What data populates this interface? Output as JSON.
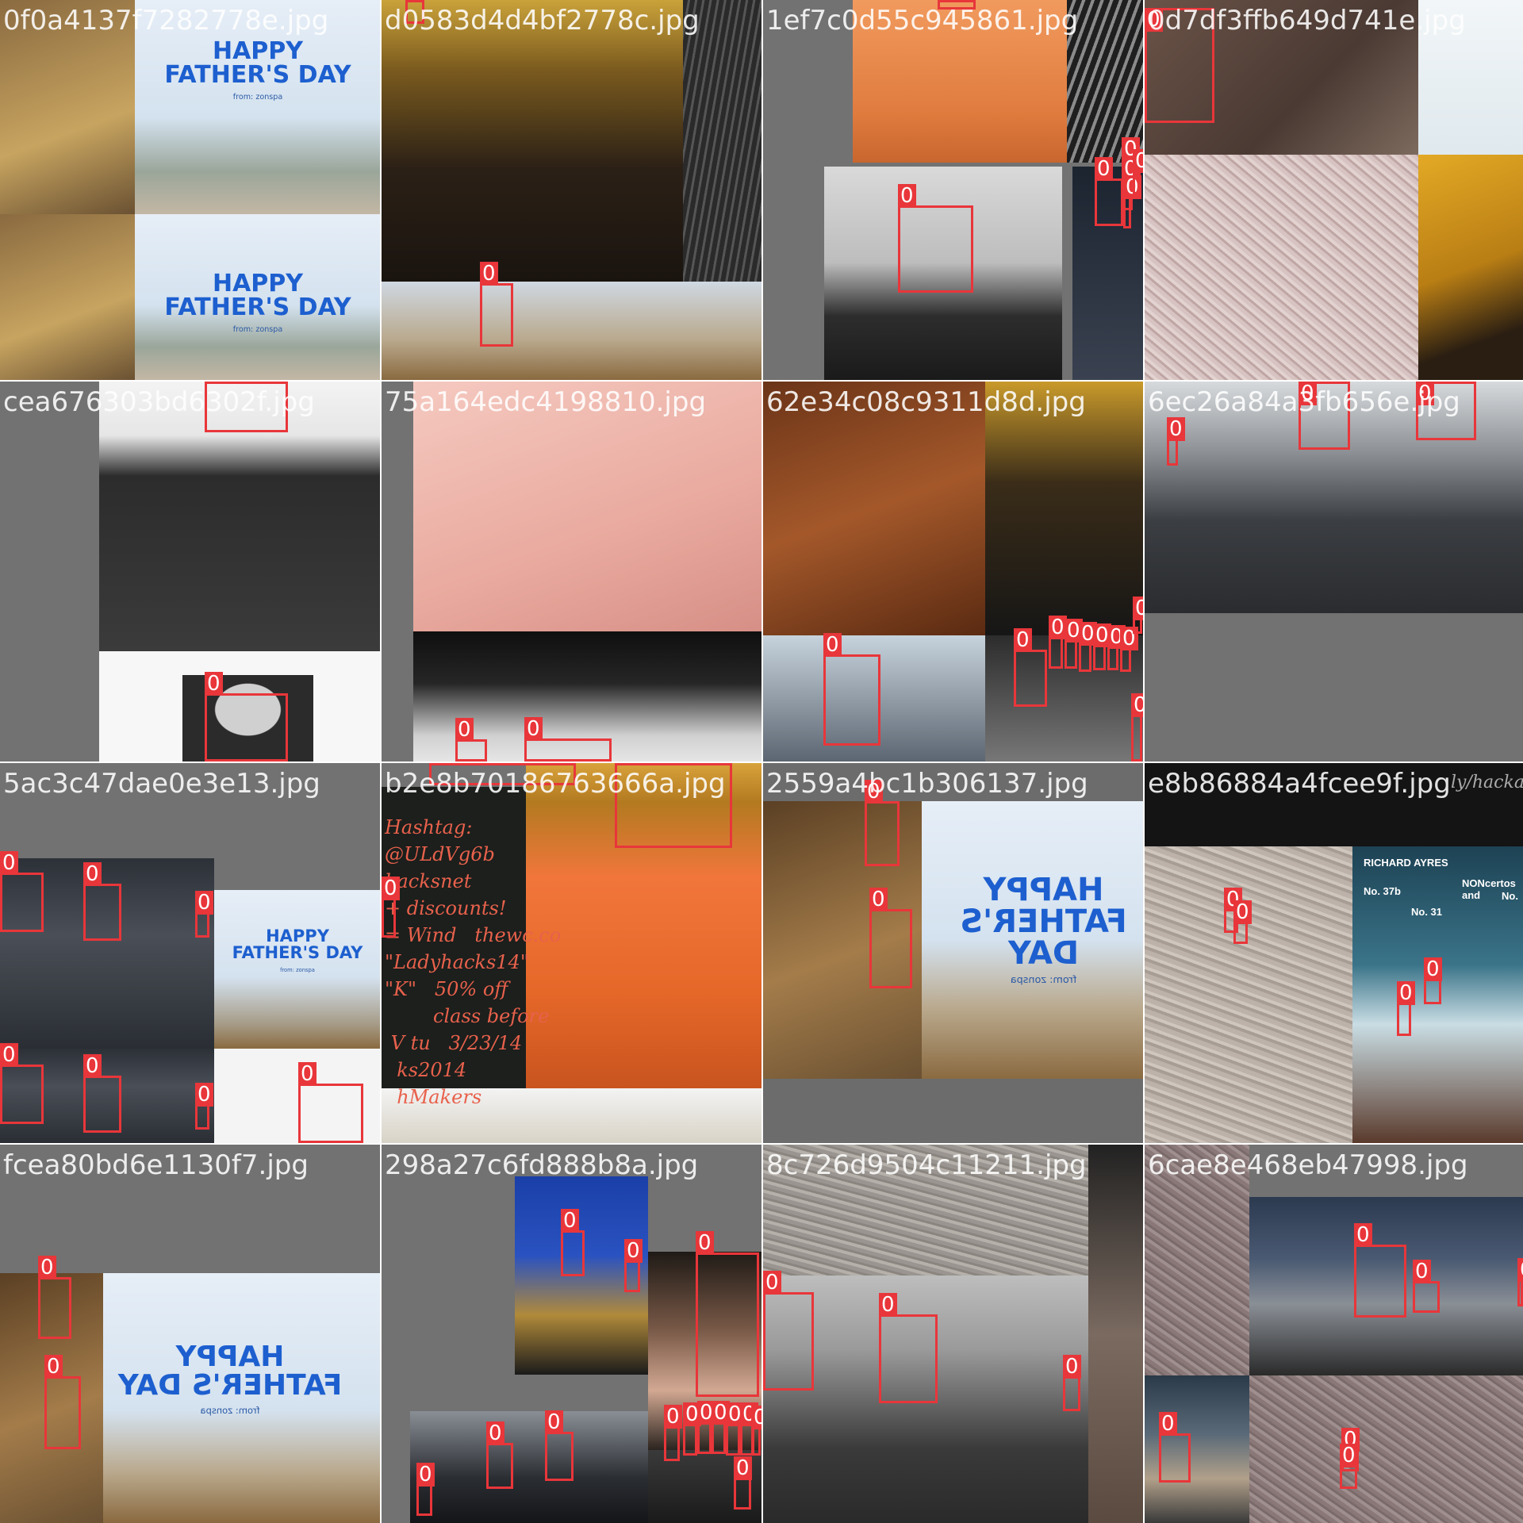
{
  "box_color": "#e8363a",
  "tiles": [
    {
      "title": "0f0a4137f7282778e.jpg",
      "boxes": [],
      "card": {
        "line1": "HAPPY",
        "line2": "FATHER'S DAY",
        "sub": "from: zonspa"
      },
      "card2": {
        "line1": "HAPPY",
        "line2": "FATHER'S DAY",
        "sub": "from: zonspa"
      }
    },
    {
      "title": "d0583d4d4bf2778c.jpg",
      "boxes": [
        "0",
        "0"
      ]
    },
    {
      "title": "1ef7c0d55c945861.jpg",
      "boxes": [
        "0",
        "0",
        "0",
        "0",
        "0",
        "0",
        "0"
      ]
    },
    {
      "title": "0d7df3ffb649d741e.jpg",
      "boxes": [
        "0"
      ]
    },
    {
      "title": "cea676303bd6302f.jpg",
      "boxes": [
        "0",
        "0"
      ]
    },
    {
      "title": "75a164edc4198810.jpg",
      "boxes": [
        "0",
        "0"
      ]
    },
    {
      "title": "62e34c08c9311d8d.jpg",
      "boxes": [
        "0",
        "0",
        "0",
        "0",
        "0",
        "0",
        "0",
        "0",
        "0",
        "0"
      ]
    },
    {
      "title": "6ec26a84a3fb656e.jpg",
      "boxes": [
        "0",
        "0",
        "0"
      ]
    },
    {
      "title": "5ac3c47dae0e3e13.jpg",
      "boxes": [
        "0",
        "0",
        "0",
        "0",
        "0",
        "0",
        "0"
      ],
      "card": {
        "line1": "HAPPY",
        "line2": "FATHER'S DAY",
        "sub": "from: zonspa"
      }
    },
    {
      "title": "b2e8b70186763666a.jpg",
      "boxes": [
        "0",
        "0",
        "0"
      ],
      "chalk": "Hashtag:\n@ULdVg6b\nhacksnet\n+ discounts!\n= Wind   thewc.co\n\"Ladyhacks14\"\n\"K\"   50% off\n        class before\n V tu   3/23/14\n  ks2014\n  hMakers"
    },
    {
      "title": "2559a4bc1b306137.jpg",
      "boxes": [
        "0",
        "0"
      ],
      "card": {
        "line1": "HAPPY",
        "line2": "FATHER'S DAY",
        "sub": "from: zonspa"
      }
    },
    {
      "title": "e8b86884a4fcee9f.jpg",
      "boxes": [
        "0",
        "0",
        "0",
        "0"
      ],
      "poster": {
        "name": "RICHARD AYRES",
        "no1": "No. 37b",
        "no2": "NONcertos and",
        "no3": "No. 31",
        "no4": "No."
      },
      "board": "ly/hackatho"
    },
    {
      "title": "fcea80bd6e1130f7.jpg",
      "boxes": [
        "0",
        "0"
      ],
      "card": {
        "line1": "HAPPY",
        "line2": "FATHER'S DAY",
        "sub": "from: zonspa"
      }
    },
    {
      "title": "298a27c6fd888b8a.jpg",
      "boxes": [
        "0",
        "0",
        "0",
        "0",
        "0",
        "0",
        "0",
        "0",
        "0",
        "0",
        "0",
        "0",
        "0",
        "0"
      ]
    },
    {
      "title": "8c726d9504c11211.jpg",
      "boxes": [
        "0",
        "0",
        "0"
      ]
    },
    {
      "title": "6cae8e468eb47998.jpg",
      "boxes": [
        "0",
        "0",
        "0",
        "0",
        "0",
        "0"
      ]
    }
  ]
}
